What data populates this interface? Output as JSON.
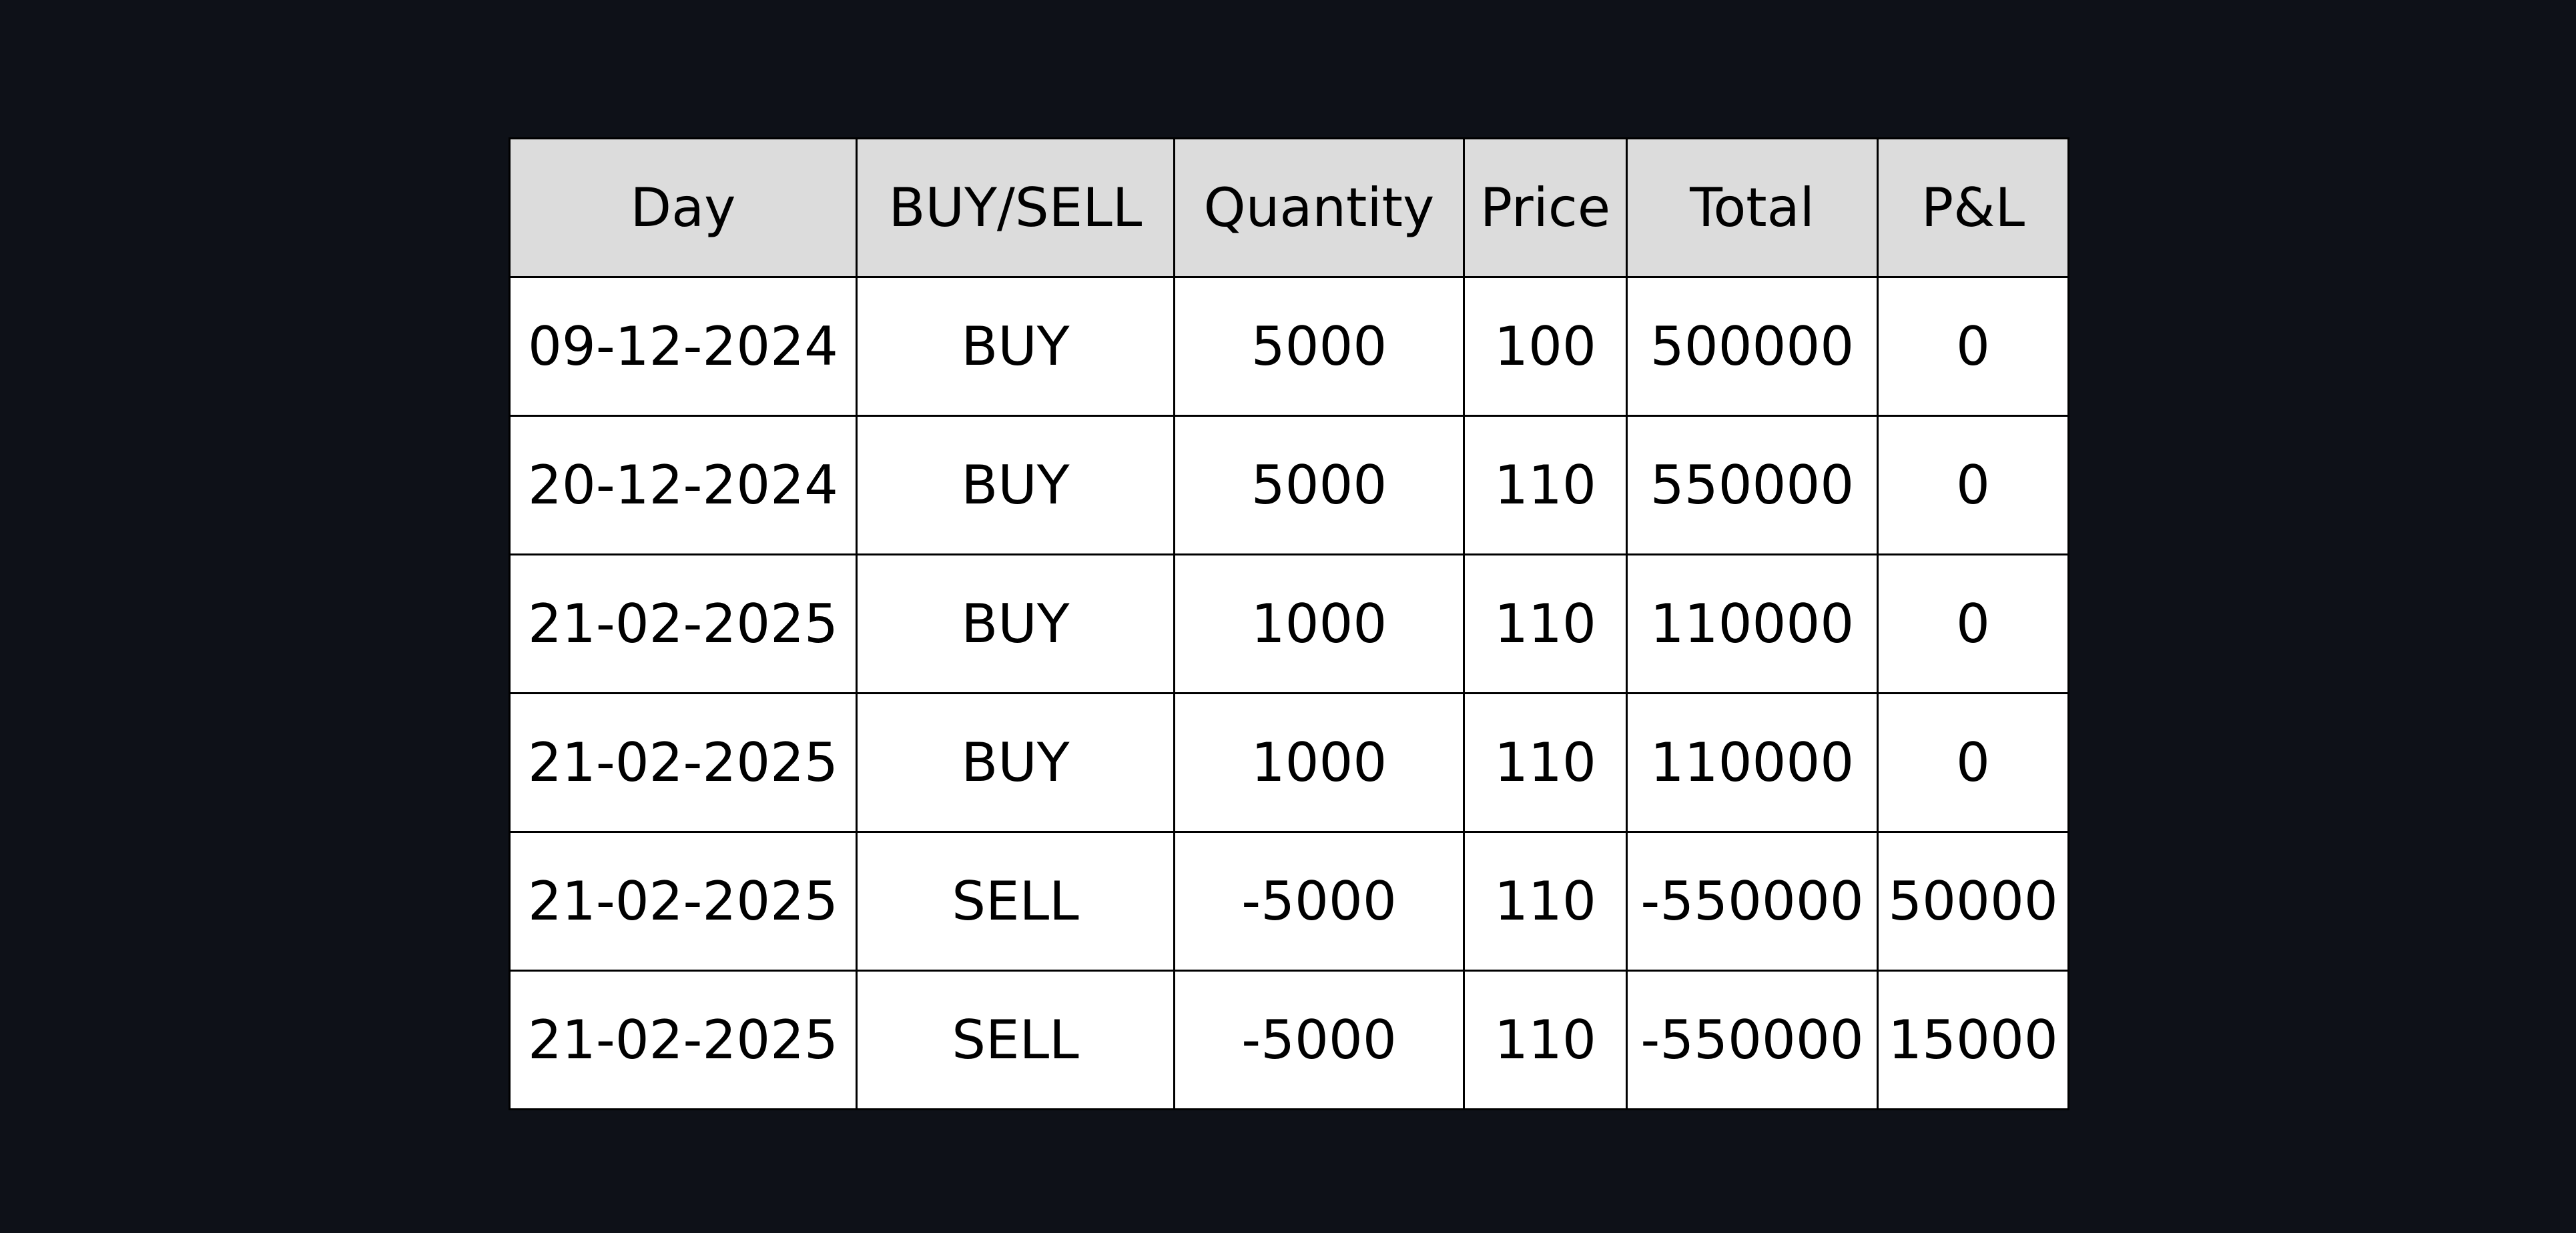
{
  "table": {
    "columns": [
      "Day",
      "BUY/SELL",
      "Quantity",
      "Price",
      "Total",
      "P&L"
    ],
    "rows": [
      [
        "09-12-2024",
        "BUY",
        "5000",
        "100",
        "500000",
        "0"
      ],
      [
        "20-12-2024",
        "BUY",
        "5000",
        "110",
        "550000",
        "0"
      ],
      [
        "21-02-2025",
        "BUY",
        "1000",
        "110",
        "110000",
        "0"
      ],
      [
        "21-02-2025",
        "BUY",
        "1000",
        "110",
        "110000",
        "0"
      ],
      [
        "21-02-2025",
        "SELL",
        "-5000",
        "110",
        "-550000",
        "50000"
      ],
      [
        "21-02-2025",
        "SELL",
        "-5000",
        "110",
        "-550000",
        "15000"
      ]
    ]
  },
  "colors": {
    "background": "#0e1118",
    "header_fill": "#dcdcdc",
    "cell_fill": "#ffffff",
    "border": "#000000",
    "text": "#000000"
  }
}
